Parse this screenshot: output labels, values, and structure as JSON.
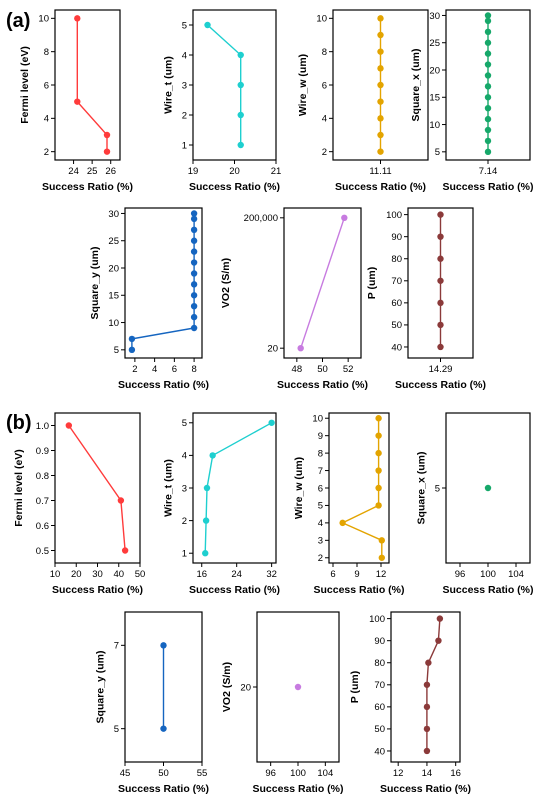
{
  "panels": [
    {
      "label": "(a)"
    },
    {
      "label": "(b)"
    }
  ],
  "chart_data": [
    {
      "type": "line",
      "panel": "a",
      "xlabel": "Success Ratio (%)",
      "ylabel": "Fermi level (eV)",
      "color": "#ff3b3b",
      "xlim": [
        23,
        26.5
      ],
      "xticks": [
        24,
        25,
        26
      ],
      "xtick_labels": [
        "24",
        "25",
        "26"
      ],
      "ylim": [
        1.5,
        10.5
      ],
      "yticks": [
        2,
        4,
        6,
        8,
        10
      ],
      "ytick_labels": [
        "2",
        "4",
        "6",
        "8",
        "10"
      ],
      "points": [
        {
          "x": 24.2,
          "y": 10
        },
        {
          "x": 24.2,
          "y": 5
        },
        {
          "x": 25.8,
          "y": 3
        },
        {
          "x": 25.8,
          "y": 2
        }
      ]
    },
    {
      "type": "line",
      "panel": "a",
      "xlabel": "Success Ratio (%)",
      "ylabel": "Wire_t (um)",
      "color": "#1ecfcf",
      "xlim": [
        19,
        21
      ],
      "xticks": [
        19,
        20,
        21
      ],
      "xtick_labels": [
        "19",
        "20",
        "21"
      ],
      "ylim": [
        0.5,
        5.5
      ],
      "yticks": [
        1,
        2,
        3,
        4,
        5
      ],
      "ytick_labels": [
        "1",
        "2",
        "3",
        "4",
        "5"
      ],
      "points": [
        {
          "x": 19.35,
          "y": 5
        },
        {
          "x": 20.15,
          "y": 4
        },
        {
          "x": 20.15,
          "y": 3
        },
        {
          "x": 20.15,
          "y": 2
        },
        {
          "x": 20.15,
          "y": 1
        }
      ]
    },
    {
      "type": "line",
      "panel": "a",
      "xlabel": "Success Ratio (%)",
      "ylabel": "Wire_w (um)",
      "color": "#e3a400",
      "xlim": [
        10.11,
        12.11
      ],
      "xticks": [
        11.11
      ],
      "xtick_labels": [
        "11.11"
      ],
      "ylim": [
        1.5,
        10.5
      ],
      "yticks": [
        2,
        4,
        6,
        8,
        10
      ],
      "ytick_labels": [
        "2",
        "4",
        "6",
        "8",
        "10"
      ],
      "points": [
        {
          "x": 11.11,
          "y": 10
        },
        {
          "x": 11.11,
          "y": 9
        },
        {
          "x": 11.11,
          "y": 8
        },
        {
          "x": 11.11,
          "y": 7
        },
        {
          "x": 11.11,
          "y": 6
        },
        {
          "x": 11.11,
          "y": 5
        },
        {
          "x": 11.11,
          "y": 4
        },
        {
          "x": 11.11,
          "y": 3
        },
        {
          "x": 11.11,
          "y": 2
        }
      ]
    },
    {
      "type": "line",
      "panel": "a",
      "xlabel": "Success Ratio (%)",
      "ylabel": "Square_x (um)",
      "color": "#16a86a",
      "xlim": [
        6.14,
        8.14
      ],
      "xticks": [
        7.14
      ],
      "xtick_labels": [
        "7.14"
      ],
      "ylim": [
        3.5,
        31
      ],
      "yticks": [
        5,
        10,
        15,
        20,
        25,
        30
      ],
      "ytick_labels": [
        "5",
        "10",
        "15",
        "20",
        "25",
        "30"
      ],
      "points": [
        {
          "x": 7.14,
          "y": 30
        },
        {
          "x": 7.14,
          "y": 29
        },
        {
          "x": 7.14,
          "y": 27
        },
        {
          "x": 7.14,
          "y": 25
        },
        {
          "x": 7.14,
          "y": 23
        },
        {
          "x": 7.14,
          "y": 21
        },
        {
          "x": 7.14,
          "y": 19
        },
        {
          "x": 7.14,
          "y": 17
        },
        {
          "x": 7.14,
          "y": 15
        },
        {
          "x": 7.14,
          "y": 13
        },
        {
          "x": 7.14,
          "y": 11
        },
        {
          "x": 7.14,
          "y": 9
        },
        {
          "x": 7.14,
          "y": 7
        },
        {
          "x": 7.14,
          "y": 5
        }
      ]
    },
    {
      "type": "line",
      "panel": "a",
      "xlabel": "Success Ratio (%)",
      "ylabel": "Square_y (um)",
      "color": "#1565c0",
      "xlim": [
        1,
        8.8
      ],
      "xticks": [
        2,
        4,
        6,
        8
      ],
      "xtick_labels": [
        "2",
        "4",
        "6",
        "8"
      ],
      "ylim": [
        3.5,
        31
      ],
      "yticks": [
        5,
        10,
        15,
        20,
        25,
        30
      ],
      "ytick_labels": [
        "5",
        "10",
        "15",
        "20",
        "25",
        "30"
      ],
      "points": [
        {
          "x": 8,
          "y": 30
        },
        {
          "x": 8,
          "y": 29
        },
        {
          "x": 8,
          "y": 27
        },
        {
          "x": 8,
          "y": 25
        },
        {
          "x": 8,
          "y": 23
        },
        {
          "x": 8,
          "y": 21
        },
        {
          "x": 8,
          "y": 19
        },
        {
          "x": 8,
          "y": 17
        },
        {
          "x": 8,
          "y": 15
        },
        {
          "x": 8,
          "y": 13
        },
        {
          "x": 8,
          "y": 11
        },
        {
          "x": 8,
          "y": 9
        },
        {
          "x": 1.7,
          "y": 7
        },
        {
          "x": 1.7,
          "y": 5
        }
      ]
    },
    {
      "type": "line",
      "panel": "a",
      "xlabel": "Success Ratio (%)",
      "ylabel": "VO2 (S/m)",
      "color": "#c77be0",
      "y_scale": "log",
      "xlim": [
        47,
        53
      ],
      "xticks": [
        48,
        50,
        52
      ],
      "xtick_labels": [
        "48",
        "50",
        "52"
      ],
      "ylim": [
        10,
        400000
      ],
      "yticks": [
        20,
        200000
      ],
      "ytick_labels": [
        "20",
        "200,000"
      ],
      "points": [
        {
          "x": 48.3,
          "y": 20
        },
        {
          "x": 51.7,
          "y": 200000
        }
      ]
    },
    {
      "type": "line",
      "panel": "a",
      "xlabel": "Success Ratio (%)",
      "ylabel": "P (um)",
      "color": "#8b3a3a",
      "xlim": [
        13.29,
        15.29
      ],
      "xticks": [
        14.29
      ],
      "xtick_labels": [
        "14.29"
      ],
      "ylim": [
        35,
        103
      ],
      "yticks": [
        40,
        50,
        60,
        70,
        80,
        90,
        100
      ],
      "ytick_labels": [
        "40",
        "50",
        "60",
        "70",
        "80",
        "90",
        "100"
      ],
      "points": [
        {
          "x": 14.29,
          "y": 100
        },
        {
          "x": 14.29,
          "y": 90
        },
        {
          "x": 14.29,
          "y": 80
        },
        {
          "x": 14.29,
          "y": 70
        },
        {
          "x": 14.29,
          "y": 60
        },
        {
          "x": 14.29,
          "y": 50
        },
        {
          "x": 14.29,
          "y": 40
        }
      ]
    },
    {
      "type": "line",
      "panel": "b",
      "xlabel": "Success Ratio (%)",
      "ylabel": "Fermi level (eV)",
      "color": "#ff3b3b",
      "xlim": [
        10,
        50
      ],
      "xticks": [
        10,
        20,
        30,
        40,
        50
      ],
      "xtick_labels": [
        "10",
        "20",
        "30",
        "40",
        "50"
      ],
      "ylim": [
        0.45,
        1.05
      ],
      "yticks": [
        0.5,
        0.6,
        0.7,
        0.8,
        0.9,
        1.0
      ],
      "ytick_labels": [
        "0.5",
        "0.6",
        "0.7",
        "0.8",
        "0.9",
        "1.0"
      ],
      "points": [
        {
          "x": 16.5,
          "y": 1.0
        },
        {
          "x": 41,
          "y": 0.7
        },
        {
          "x": 43,
          "y": 0.5
        }
      ]
    },
    {
      "type": "line",
      "panel": "b",
      "xlabel": "Success Ratio (%)",
      "ylabel": "Wire_t (um)",
      "color": "#1ecfcf",
      "xlim": [
        14,
        33
      ],
      "xticks": [
        16,
        24,
        32
      ],
      "xtick_labels": [
        "16",
        "24",
        "32"
      ],
      "ylim": [
        0.7,
        5.3
      ],
      "yticks": [
        1,
        2,
        3,
        4,
        5
      ],
      "ytick_labels": [
        "1",
        "2",
        "3",
        "4",
        "5"
      ],
      "points": [
        {
          "x": 32,
          "y": 5
        },
        {
          "x": 18.5,
          "y": 4
        },
        {
          "x": 17.2,
          "y": 3
        },
        {
          "x": 17,
          "y": 2
        },
        {
          "x": 16.8,
          "y": 1
        }
      ]
    },
    {
      "type": "line",
      "panel": "b",
      "xlabel": "Success Ratio (%)",
      "ylabel": "Wire_w (um)",
      "color": "#e3a400",
      "xlim": [
        5.5,
        13
      ],
      "xticks": [
        6,
        9,
        12
      ],
      "xtick_labels": [
        "6",
        "9",
        "12"
      ],
      "ylim": [
        1.7,
        10.3
      ],
      "yticks": [
        2,
        3,
        4,
        5,
        6,
        7,
        8,
        9,
        10
      ],
      "ytick_labels": [
        "2",
        "3",
        "4",
        "5",
        "6",
        "7",
        "8",
        "9",
        "10"
      ],
      "points": [
        {
          "x": 11.7,
          "y": 10
        },
        {
          "x": 11.7,
          "y": 9
        },
        {
          "x": 11.7,
          "y": 8
        },
        {
          "x": 11.7,
          "y": 7
        },
        {
          "x": 11.7,
          "y": 6
        },
        {
          "x": 11.7,
          "y": 5
        },
        {
          "x": 7.2,
          "y": 4
        },
        {
          "x": 12.1,
          "y": 3
        },
        {
          "x": 12.1,
          "y": 2
        }
      ]
    },
    {
      "type": "scatter",
      "panel": "b",
      "xlabel": "Success Ratio (%)",
      "ylabel": "Square_x (um)",
      "color": "#16a86a",
      "xlim": [
        94,
        106
      ],
      "xticks": [
        96,
        100,
        104
      ],
      "xtick_labels": [
        "96",
        "100",
        "104"
      ],
      "ylim": [
        3,
        7
      ],
      "yticks": [
        5
      ],
      "ytick_labels": [
        "5"
      ],
      "points": [
        {
          "x": 100,
          "y": 5
        }
      ]
    },
    {
      "type": "line",
      "panel": "b",
      "xlabel": "Success Ratio (%)",
      "ylabel": "Square_y (um)",
      "color": "#1565c0",
      "xlim": [
        45,
        55
      ],
      "xticks": [
        45,
        50,
        55
      ],
      "xtick_labels": [
        "45",
        "50",
        "55"
      ],
      "ylim": [
        4.2,
        7.8
      ],
      "yticks": [
        5,
        7
      ],
      "ytick_labels": [
        "5",
        "7"
      ],
      "points": [
        {
          "x": 50,
          "y": 7
        },
        {
          "x": 50,
          "y": 5
        }
      ]
    },
    {
      "type": "scatter",
      "panel": "b",
      "xlabel": "Success Ratio (%)",
      "ylabel": "VO2 (S/m)",
      "color": "#c77be0",
      "xlim": [
        94,
        106
      ],
      "xticks": [
        96,
        100,
        104
      ],
      "xtick_labels": [
        "96",
        "100",
        "104"
      ],
      "ylim": [
        10,
        30
      ],
      "yticks": [
        20
      ],
      "ytick_labels": [
        "20"
      ],
      "points": [
        {
          "x": 100,
          "y": 20
        }
      ]
    },
    {
      "type": "line",
      "panel": "b",
      "xlabel": "Success Ratio (%)",
      "ylabel": "P (um)",
      "color": "#8b3a3a",
      "xlim": [
        11.5,
        16.3
      ],
      "xticks": [
        12,
        14,
        16
      ],
      "xtick_labels": [
        "12",
        "14",
        "16"
      ],
      "ylim": [
        35,
        103
      ],
      "yticks": [
        40,
        50,
        60,
        70,
        80,
        90,
        100
      ],
      "ytick_labels": [
        "40",
        "50",
        "60",
        "70",
        "80",
        "90",
        "100"
      ],
      "points": [
        {
          "x": 14.9,
          "y": 100
        },
        {
          "x": 14.8,
          "y": 90
        },
        {
          "x": 14.1,
          "y": 80
        },
        {
          "x": 14,
          "y": 70
        },
        {
          "x": 14,
          "y": 60
        },
        {
          "x": 14,
          "y": 50
        },
        {
          "x": 14,
          "y": 40
        }
      ]
    }
  ]
}
